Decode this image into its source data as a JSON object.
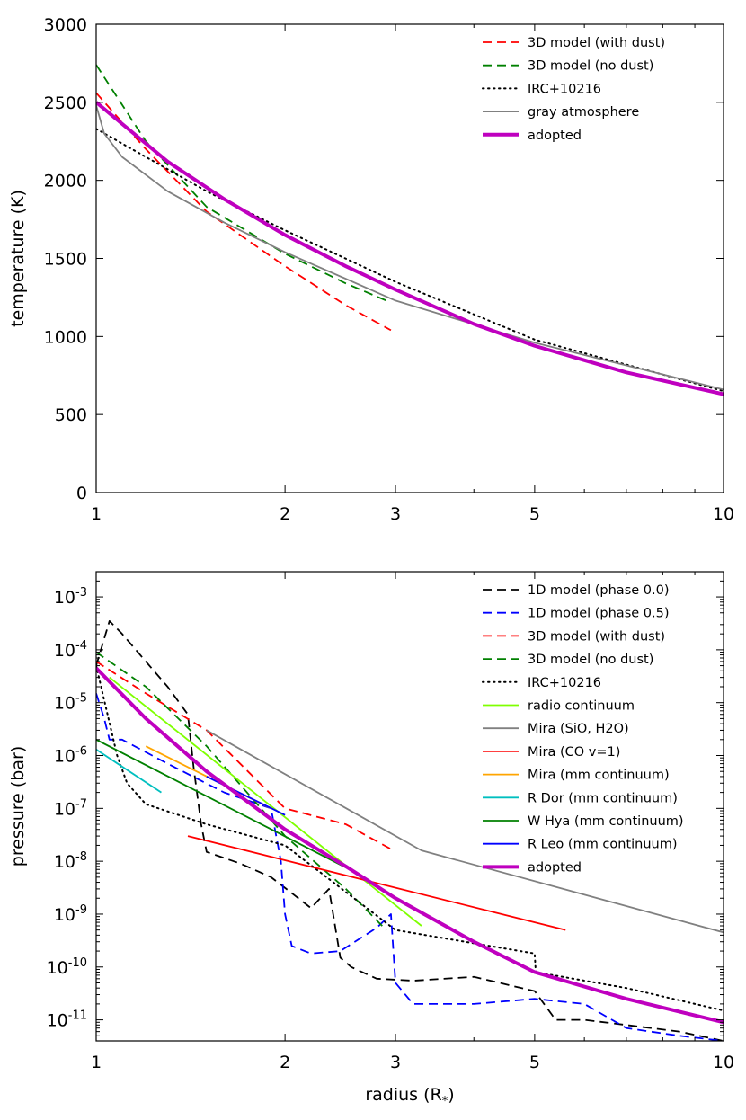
{
  "chart_data": [
    {
      "type": "line",
      "xscale": "log",
      "xlim": [
        1,
        10
      ],
      "ylim": [
        0,
        3000
      ],
      "xticks": [
        1,
        2,
        3,
        5,
        10
      ],
      "xtick_labels": [
        "1",
        "2",
        "3",
        "5",
        "10"
      ],
      "yticks": [
        0,
        500,
        1000,
        1500,
        2000,
        2500,
        3000
      ],
      "ytick_labels": [
        "0",
        "500",
        "1000",
        "1500",
        "2000",
        "2500",
        "3000"
      ],
      "xlabel": "",
      "ylabel": "temperature (K)",
      "legend_position": "top-right",
      "series": [
        {
          "name": "3D model (with dust)",
          "color": "#ff0000",
          "style": "dashed",
          "x": [
            1.0,
            1.2,
            1.5,
            2.0,
            2.5,
            2.95
          ],
          "y": [
            2560,
            2200,
            1800,
            1450,
            1200,
            1040
          ]
        },
        {
          "name": "3D model (no dust)",
          "color": "#008000",
          "style": "dashed",
          "x": [
            1.0,
            1.2,
            1.5,
            2.0,
            2.5,
            2.9
          ],
          "y": [
            2740,
            2250,
            1830,
            1530,
            1340,
            1230
          ]
        },
        {
          "name": "IRC+10216",
          "color": "#000000",
          "style": "dotted",
          "x": [
            1.0,
            1.2,
            1.5,
            2.0,
            3.0,
            5.0,
            10.0
          ],
          "y": [
            2330,
            2150,
            1930,
            1680,
            1350,
            980,
            650
          ]
        },
        {
          "name": "gray atmosphere",
          "color": "#808080",
          "style": "solid",
          "x": [
            1.0,
            1.03,
            1.1,
            1.3,
            1.6,
            2.0,
            3.0,
            5.0,
            10.0
          ],
          "y": [
            2480,
            2300,
            2150,
            1930,
            1730,
            1540,
            1230,
            960,
            660
          ]
        },
        {
          "name": "adopted",
          "color": "#bf00bf",
          "style": "solid-thick",
          "x": [
            1.0,
            1.3,
            1.6,
            2.0,
            2.5,
            3.0,
            4.0,
            5.0,
            7.0,
            10.0
          ],
          "y": [
            2500,
            2120,
            1880,
            1650,
            1450,
            1300,
            1080,
            940,
            770,
            630
          ]
        }
      ]
    },
    {
      "type": "line",
      "xscale": "log",
      "yscale": "log",
      "xlim": [
        1,
        10
      ],
      "ylim": [
        4e-12,
        0.003
      ],
      "xticks": [
        1,
        2,
        3,
        5,
        10
      ],
      "xtick_labels": [
        "1",
        "2",
        "3",
        "5",
        "10"
      ],
      "yticks_exp": [
        "-3",
        "-4",
        "-5",
        "-6",
        "-7",
        "-8",
        "-9",
        "-10",
        "-11"
      ],
      "ytick_base": "10",
      "xlabel": "radius (R",
      "xlabel_sub": "*",
      "xlabel_close": ")",
      "ylabel": "pressure (bar)",
      "legend_position": "top-right",
      "series": [
        {
          "name": "1D model (phase 0.0)",
          "color": "#000000",
          "style": "dashed",
          "x": [
            1.0,
            1.05,
            1.1,
            1.2,
            1.3,
            1.4,
            1.43,
            1.47,
            1.5,
            1.7,
            1.9,
            2.05,
            2.2,
            2.35,
            2.45,
            2.55,
            2.8,
            3.2,
            4.0,
            5.0,
            5.4,
            6.0,
            7.0,
            8.5,
            10.0
          ],
          "y": [
            5e-05,
            0.00035,
            0.0002,
            6e-05,
            2e-05,
            6e-06,
            6e-07,
            5e-08,
            1.5e-08,
            9e-09,
            5e-09,
            2.5e-09,
            1.3e-09,
            3e-09,
            1.5e-10,
            1e-10,
            6e-11,
            5.5e-11,
            6.5e-11,
            3.5e-11,
            1e-11,
            1e-11,
            8e-12,
            6e-12,
            4e-12
          ]
        },
        {
          "name": "1D model (phase 0.5)",
          "color": "#0000ff",
          "style": "dashed",
          "x": [
            1.0,
            1.03,
            1.05,
            1.1,
            1.3,
            1.6,
            1.9,
            1.97,
            2.0,
            2.05,
            2.2,
            2.45,
            2.8,
            2.95,
            3.0,
            3.2,
            4.0,
            5.0,
            6.0,
            7.0,
            8.5,
            10.0
          ],
          "y": [
            1.5e-05,
            5e-06,
            2e-06,
            2e-06,
            7e-07,
            2e-07,
            1e-07,
            1e-08,
            1e-09,
            2.5e-10,
            1.8e-10,
            2e-10,
            5.5e-10,
            1e-09,
            5e-11,
            2e-11,
            2e-11,
            2.5e-11,
            2e-11,
            7e-12,
            5e-12,
            4e-12
          ]
        },
        {
          "name": "3D model (with dust)",
          "color": "#ff0000",
          "style": "dashed",
          "x": [
            1.0,
            1.2,
            1.5,
            2.0,
            2.5,
            2.95
          ],
          "y": [
            6e-05,
            1.5e-05,
            3e-06,
            1e-07,
            5e-08,
            1.7e-08
          ]
        },
        {
          "name": "3D model (no dust)",
          "color": "#008000",
          "style": "dashed",
          "x": [
            1.0,
            1.2,
            1.5,
            2.0,
            2.5,
            2.9
          ],
          "y": [
            9e-05,
            2e-05,
            1.5e-06,
            3e-08,
            3e-09,
            5e-10
          ]
        },
        {
          "name": "IRC+10216",
          "color": "#000000",
          "style": "dotted",
          "x": [
            1.0,
            1.08,
            1.12,
            1.2,
            1.5,
            2.0,
            3.0,
            5.0,
            5.02,
            7.0,
            10.0
          ],
          "y": [
            5e-05,
            1e-06,
            3e-07,
            1.2e-07,
            5e-08,
            2e-08,
            5e-10,
            1.8e-10,
            8e-11,
            4e-11,
            1.5e-11
          ]
        },
        {
          "name": "radio continuum",
          "color": "#7fff00",
          "style": "solid",
          "x": [
            1.05,
            3.3
          ],
          "y": [
            3e-05,
            6e-10
          ]
        },
        {
          "name": "Mira (SiO, H2O)",
          "color": "#808080",
          "style": "solid",
          "x": [
            1.5,
            3.3,
            10.0
          ],
          "y": [
            3e-06,
            1.6e-08,
            4.5e-10
          ]
        },
        {
          "name": "Mira (CO v=1)",
          "color": "#ff0000",
          "style": "solid",
          "x": [
            1.4,
            5.6
          ],
          "y": [
            3e-08,
            5e-10
          ]
        },
        {
          "name": "Mira (mm continuum)",
          "color": "#ffa500",
          "style": "solid",
          "x": [
            1.2,
            1.9
          ],
          "y": [
            1.5e-06,
            1e-07
          ]
        },
        {
          "name": "R Dor (mm continuum)",
          "color": "#00bfbf",
          "style": "solid",
          "x": [
            1.0,
            1.27
          ],
          "y": [
            1.3e-06,
            2e-07
          ]
        },
        {
          "name": "W Hya (mm continuum)",
          "color": "#008000",
          "style": "solid",
          "x": [
            1.0,
            2.6
          ],
          "y": [
            2e-06,
            6e-09
          ]
        },
        {
          "name": "R Leo (mm continuum)",
          "color": "#0000ff",
          "style": "solid",
          "x": [
            1.5,
            2.0
          ],
          "y": [
            4e-07,
            7.5e-08
          ]
        },
        {
          "name": "adopted",
          "color": "#bf00bf",
          "style": "solid-thick",
          "x": [
            1.0,
            1.2,
            1.5,
            2.0,
            2.5,
            3.0,
            4.0,
            5.0,
            7.0,
            10.0
          ],
          "y": [
            4.5e-05,
            5e-06,
            5e-07,
            4e-08,
            8e-09,
            2e-09,
            3e-10,
            8e-11,
            2.5e-11,
            9e-12
          ]
        }
      ]
    }
  ]
}
